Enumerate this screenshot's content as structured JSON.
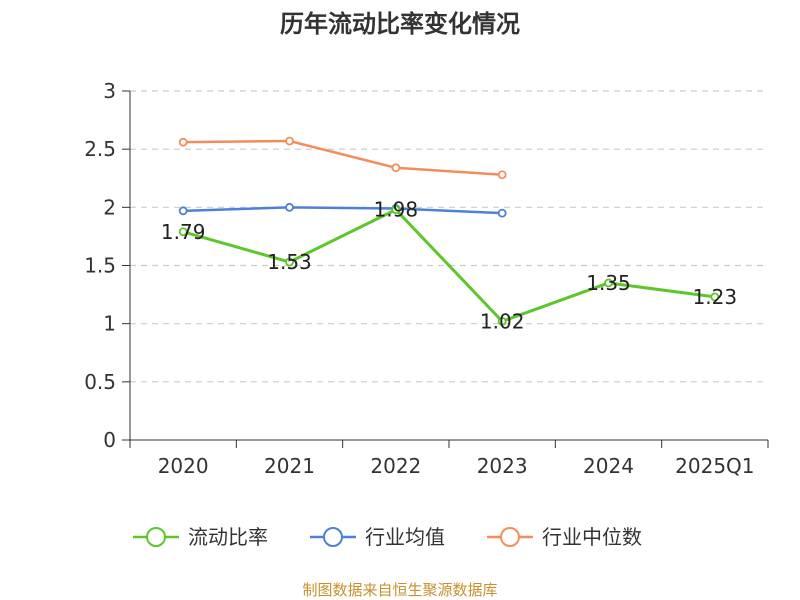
{
  "chart_data": {
    "type": "line",
    "title": "历年流动比率变化情况",
    "categories": [
      "2020",
      "2021",
      "2022",
      "2023",
      "2024",
      "2025Q1"
    ],
    "ylim": [
      0,
      3
    ],
    "yticks": [
      "0",
      "0.5",
      "1",
      "1.5",
      "2",
      "2.5",
      "3"
    ],
    "grid": true,
    "legend_position": "bottom",
    "series": [
      {
        "name": "流动比率",
        "color": "#5cc72a",
        "values": [
          1.79,
          1.53,
          1.98,
          1.02,
          1.35,
          1.23
        ],
        "labels": [
          "1.79",
          "1.53",
          "1.98",
          "1.02",
          "1.35",
          "1.23"
        ]
      },
      {
        "name": "行业均值",
        "color": "#4e7fd9",
        "values": [
          1.97,
          2.0,
          1.99,
          1.95,
          null,
          null
        ]
      },
      {
        "name": "行业中位数",
        "color": "#f58d5a",
        "values": [
          2.56,
          2.57,
          2.34,
          2.28,
          null,
          null
        ]
      }
    ],
    "source": "制图数据来自恒生聚源数据库"
  }
}
